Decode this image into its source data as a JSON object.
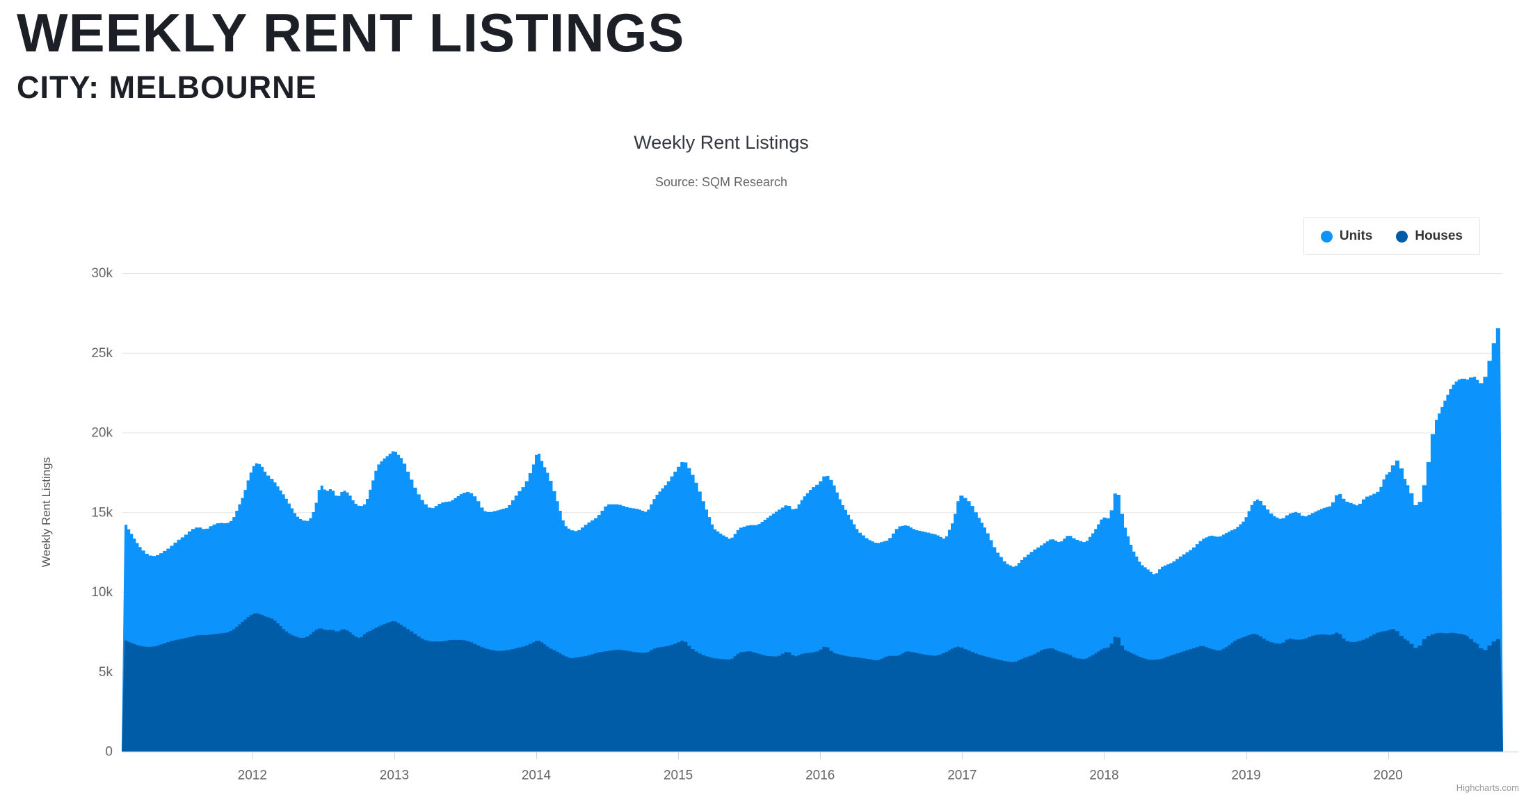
{
  "page": {
    "title": "WEEKLY RENT LISTINGS",
    "subtitle": "CITY: MELBOURNE"
  },
  "chart": {
    "title": "Weekly Rent Listings",
    "subtitle": "Source: SQM Research",
    "credit": "Highcharts.com"
  },
  "chart_data": {
    "type": "area",
    "title": "Weekly Rent Listings",
    "subtitle": "Source: SQM Research",
    "xlabel": "",
    "ylabel": "Weekly Rent Listings",
    "grid": true,
    "legend_position": "top-right",
    "xlim": [
      2011.08,
      2020.81
    ],
    "ylim": [
      0,
      30000
    ],
    "x_ticks": [
      2012,
      2013,
      2014,
      2015,
      2016,
      2017,
      2018,
      2019,
      2020
    ],
    "y_tick_values": [
      0,
      5000,
      10000,
      15000,
      20000,
      25000,
      30000
    ],
    "y_tick_labels": [
      "0",
      "5k",
      "10k",
      "15k",
      "20k",
      "25k",
      "30k"
    ],
    "x": [
      2011.1,
      2011.14,
      2011.18,
      2011.22,
      2011.27,
      2011.32,
      2011.37,
      2011.42,
      2011.47,
      2011.52,
      2011.57,
      2011.62,
      2011.67,
      2011.72,
      2011.77,
      2011.82,
      2011.86,
      2011.9,
      2011.94,
      2011.98,
      2012.02,
      2012.06,
      2012.1,
      2012.15,
      2012.19,
      2012.23,
      2012.27,
      2012.31,
      2012.35,
      2012.4,
      2012.44,
      2012.48,
      2012.52,
      2012.56,
      2012.6,
      2012.64,
      2012.68,
      2012.72,
      2012.76,
      2012.8,
      2012.84,
      2012.88,
      2012.92,
      2012.96,
      2013.0,
      2013.06,
      2013.11,
      2013.16,
      2013.21,
      2013.26,
      2013.33,
      2013.4,
      2013.48,
      2013.53,
      2013.58,
      2013.63,
      2013.67,
      2013.72,
      2013.8,
      2013.87,
      2013.92,
      2013.97,
      2014.01,
      2014.05,
      2014.09,
      2014.14,
      2014.2,
      2014.24,
      2014.29,
      2014.36,
      2014.43,
      2014.5,
      2014.58,
      2014.65,
      2014.72,
      2014.78,
      2014.84,
      2014.92,
      2014.99,
      2015.04,
      2015.09,
      2015.14,
      2015.19,
      2015.25,
      2015.31,
      2015.37,
      2015.43,
      2015.5,
      2015.56,
      2015.62,
      2015.7,
      2015.77,
      2015.82,
      2015.88,
      2015.94,
      2015.99,
      2016.04,
      2016.09,
      2016.15,
      2016.21,
      2016.27,
      2016.34,
      2016.4,
      2016.48,
      2016.55,
      2016.61,
      2016.67,
      2016.75,
      2016.82,
      2016.88,
      2016.94,
      2016.98,
      2017.01,
      2017.06,
      2017.11,
      2017.17,
      2017.24,
      2017.31,
      2017.37,
      2017.43,
      2017.5,
      2017.57,
      2017.63,
      2017.69,
      2017.75,
      2017.8,
      2017.87,
      2017.93,
      2017.99,
      2018.04,
      2018.09,
      2018.14,
      2018.2,
      2018.26,
      2018.32,
      2018.36,
      2018.4,
      2018.48,
      2018.55,
      2018.62,
      2018.69,
      2018.75,
      2018.81,
      2018.87,
      2018.93,
      2018.99,
      2019.05,
      2019.09,
      2019.14,
      2019.19,
      2019.25,
      2019.3,
      2019.36,
      2019.41,
      2019.48,
      2019.54,
      2019.6,
      2019.65,
      2019.7,
      2019.75,
      2019.79,
      2019.84,
      2019.89,
      2019.94,
      2019.98,
      2020.02,
      2020.05,
      2020.08,
      2020.11,
      2020.15,
      2020.18,
      2020.21,
      2020.24,
      2020.27,
      2020.3,
      2020.33,
      2020.37,
      2020.41,
      2020.45,
      2020.49,
      2020.53,
      2020.57,
      2020.6,
      2020.64,
      2020.67,
      2020.7,
      2020.73,
      2020.76,
      2020.79
    ],
    "series": [
      {
        "name": "Units",
        "color": "#0c93fc",
        "values": [
          14350,
          13800,
          13200,
          12700,
          12300,
          12250,
          12500,
          12800,
          13200,
          13500,
          13900,
          14100,
          13900,
          14200,
          14350,
          14300,
          14500,
          15300,
          16100,
          17300,
          18100,
          18000,
          17400,
          17000,
          16500,
          16000,
          15400,
          14800,
          14500,
          14450,
          15200,
          16800,
          16300,
          16500,
          15900,
          16400,
          16200,
          15600,
          15350,
          15550,
          16700,
          17900,
          18300,
          18600,
          18900,
          18300,
          17300,
          16300,
          15600,
          15200,
          15600,
          15700,
          16200,
          16300,
          15900,
          15100,
          15000,
          15100,
          15300,
          16200,
          16700,
          17700,
          18900,
          18000,
          17300,
          16000,
          14200,
          13900,
          13800,
          14300,
          14700,
          15500,
          15500,
          15300,
          15200,
          15000,
          16000,
          16800,
          17700,
          18300,
          17600,
          16600,
          15400,
          14000,
          13600,
          13300,
          14000,
          14200,
          14200,
          14600,
          15100,
          15500,
          15100,
          15900,
          16500,
          16800,
          17400,
          16900,
          15600,
          14700,
          13800,
          13300,
          13050,
          13250,
          14100,
          14200,
          13900,
          13750,
          13600,
          13300,
          14500,
          16100,
          16000,
          15600,
          14800,
          13900,
          12600,
          11800,
          11550,
          12100,
          12600,
          13000,
          13350,
          13100,
          13600,
          13300,
          13100,
          13800,
          14700,
          14600,
          16700,
          14300,
          12700,
          11750,
          11350,
          11050,
          11550,
          11850,
          12300,
          12700,
          13300,
          13550,
          13450,
          13750,
          14000,
          14500,
          15650,
          15850,
          15300,
          14800,
          14550,
          14900,
          15050,
          14700,
          15000,
          15250,
          15400,
          16300,
          15700,
          15550,
          15400,
          15950,
          16100,
          16350,
          17300,
          17600,
          18300,
          18200,
          17300,
          16500,
          15900,
          15000,
          16300,
          17100,
          19200,
          20600,
          21400,
          22200,
          22900,
          23300,
          23400,
          23300,
          23600,
          23200,
          23000,
          24000,
          25000,
          26200,
          26900
        ]
      },
      {
        "name": "Houses",
        "color": "#015ca8",
        "values": [
          7000,
          6850,
          6700,
          6600,
          6550,
          6600,
          6750,
          6900,
          7000,
          7100,
          7200,
          7300,
          7300,
          7350,
          7400,
          7450,
          7600,
          7900,
          8200,
          8500,
          8700,
          8600,
          8450,
          8300,
          7950,
          7600,
          7350,
          7200,
          7100,
          7250,
          7600,
          7750,
          7600,
          7650,
          7500,
          7700,
          7550,
          7250,
          7100,
          7450,
          7600,
          7800,
          7950,
          8100,
          8200,
          7900,
          7600,
          7300,
          7000,
          6900,
          6900,
          7000,
          7000,
          6900,
          6700,
          6500,
          6400,
          6300,
          6350,
          6500,
          6600,
          6800,
          7000,
          6800,
          6500,
          6300,
          6000,
          5850,
          5900,
          6000,
          6200,
          6300,
          6400,
          6300,
          6200,
          6200,
          6500,
          6600,
          6800,
          7000,
          6500,
          6200,
          6000,
          5850,
          5800,
          5750,
          6200,
          6300,
          6150,
          6000,
          5950,
          6300,
          5950,
          6150,
          6200,
          6300,
          6650,
          6200,
          6050,
          5950,
          5900,
          5800,
          5700,
          6000,
          6000,
          6300,
          6200,
          6050,
          6000,
          6200,
          6500,
          6600,
          6450,
          6300,
          6100,
          5950,
          5800,
          5650,
          5600,
          5850,
          6050,
          6400,
          6500,
          6250,
          6100,
          5850,
          5800,
          6100,
          6450,
          6550,
          7400,
          6400,
          6150,
          5900,
          5750,
          5750,
          5800,
          6050,
          6250,
          6450,
          6650,
          6450,
          6300,
          6600,
          7000,
          7200,
          7400,
          7300,
          7000,
          6800,
          6750,
          7100,
          7000,
          7050,
          7300,
          7350,
          7300,
          7500,
          6950,
          6850,
          6900,
          7050,
          7300,
          7500,
          7550,
          7650,
          7700,
          7400,
          7100,
          6900,
          6600,
          6400,
          6900,
          7200,
          7300,
          7400,
          7450,
          7400,
          7450,
          7400,
          7350,
          7200,
          6900,
          6700,
          6250,
          6500,
          6800,
          7000,
          7100
        ]
      }
    ]
  }
}
